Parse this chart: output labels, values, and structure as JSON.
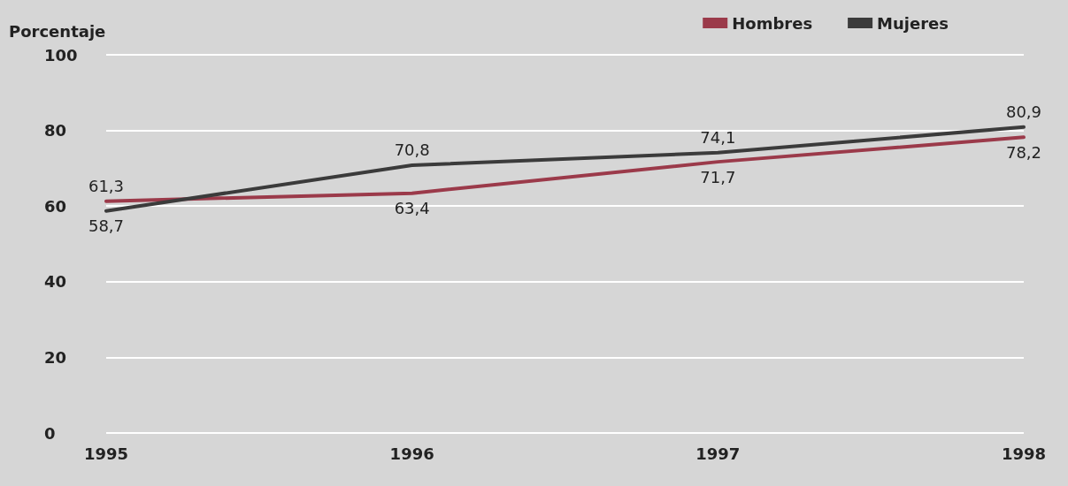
{
  "chart_data": {
    "type": "line",
    "ylabel": "Porcentaje",
    "categories": [
      "1995",
      "1996",
      "1997",
      "1998"
    ],
    "series": [
      {
        "name": "Hombres",
        "color": "#9b3a4a",
        "values": [
          61.3,
          63.4,
          71.7,
          78.2
        ],
        "value_labels": [
          "61,3",
          "63,4",
          "71,7",
          "78,2"
        ]
      },
      {
        "name": "Mujeres",
        "color": "#3b3b3b",
        "values": [
          58.7,
          70.8,
          74.1,
          80.9
        ],
        "value_labels": [
          "58,7",
          "70,8",
          "74,1",
          "80,9"
        ]
      }
    ],
    "ylim": [
      0,
      100
    ],
    "yticks": [
      0,
      20,
      40,
      60,
      80,
      100
    ],
    "grid": "y",
    "legend": "top right",
    "marker": "none",
    "line_style": "solid"
  }
}
